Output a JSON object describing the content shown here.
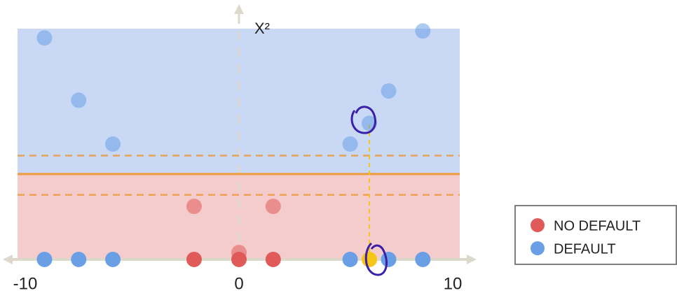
{
  "chart_data": {
    "type": "scatter",
    "axis_label": "X²",
    "xlim": [
      -10,
      10
    ],
    "ylim": [
      0,
      100
    ],
    "xticks": [
      -10,
      0,
      10
    ],
    "boundary": 37,
    "margin_lines": [
      28,
      45
    ],
    "upper_color": "#c9d9f5",
    "lower_color": "#f4cccc",
    "boundary_color": "#ec9a3c",
    "highlight": {
      "x": 6.1,
      "values": [
        0,
        59
      ],
      "color": "#f5c518"
    },
    "series": [
      {
        "name": "NO DEFAULT",
        "color": "#e05a5a",
        "x": [
          -2.1,
          0,
          1.6,
          -2.1,
          0,
          1.6
        ],
        "values": [
          0,
          0,
          0,
          23,
          3,
          23
        ]
      },
      {
        "name": "DEFAULT",
        "color": "#6a9fe6",
        "x": [
          -9.1,
          -7.5,
          -5.9,
          5.2,
          7.0,
          8.6,
          -9.1,
          -7.5,
          -5.9,
          5.2,
          7.0,
          8.6
        ],
        "values": [
          0,
          0,
          0,
          0,
          0,
          0,
          96,
          69,
          50,
          50,
          73,
          99
        ]
      }
    ]
  }
}
